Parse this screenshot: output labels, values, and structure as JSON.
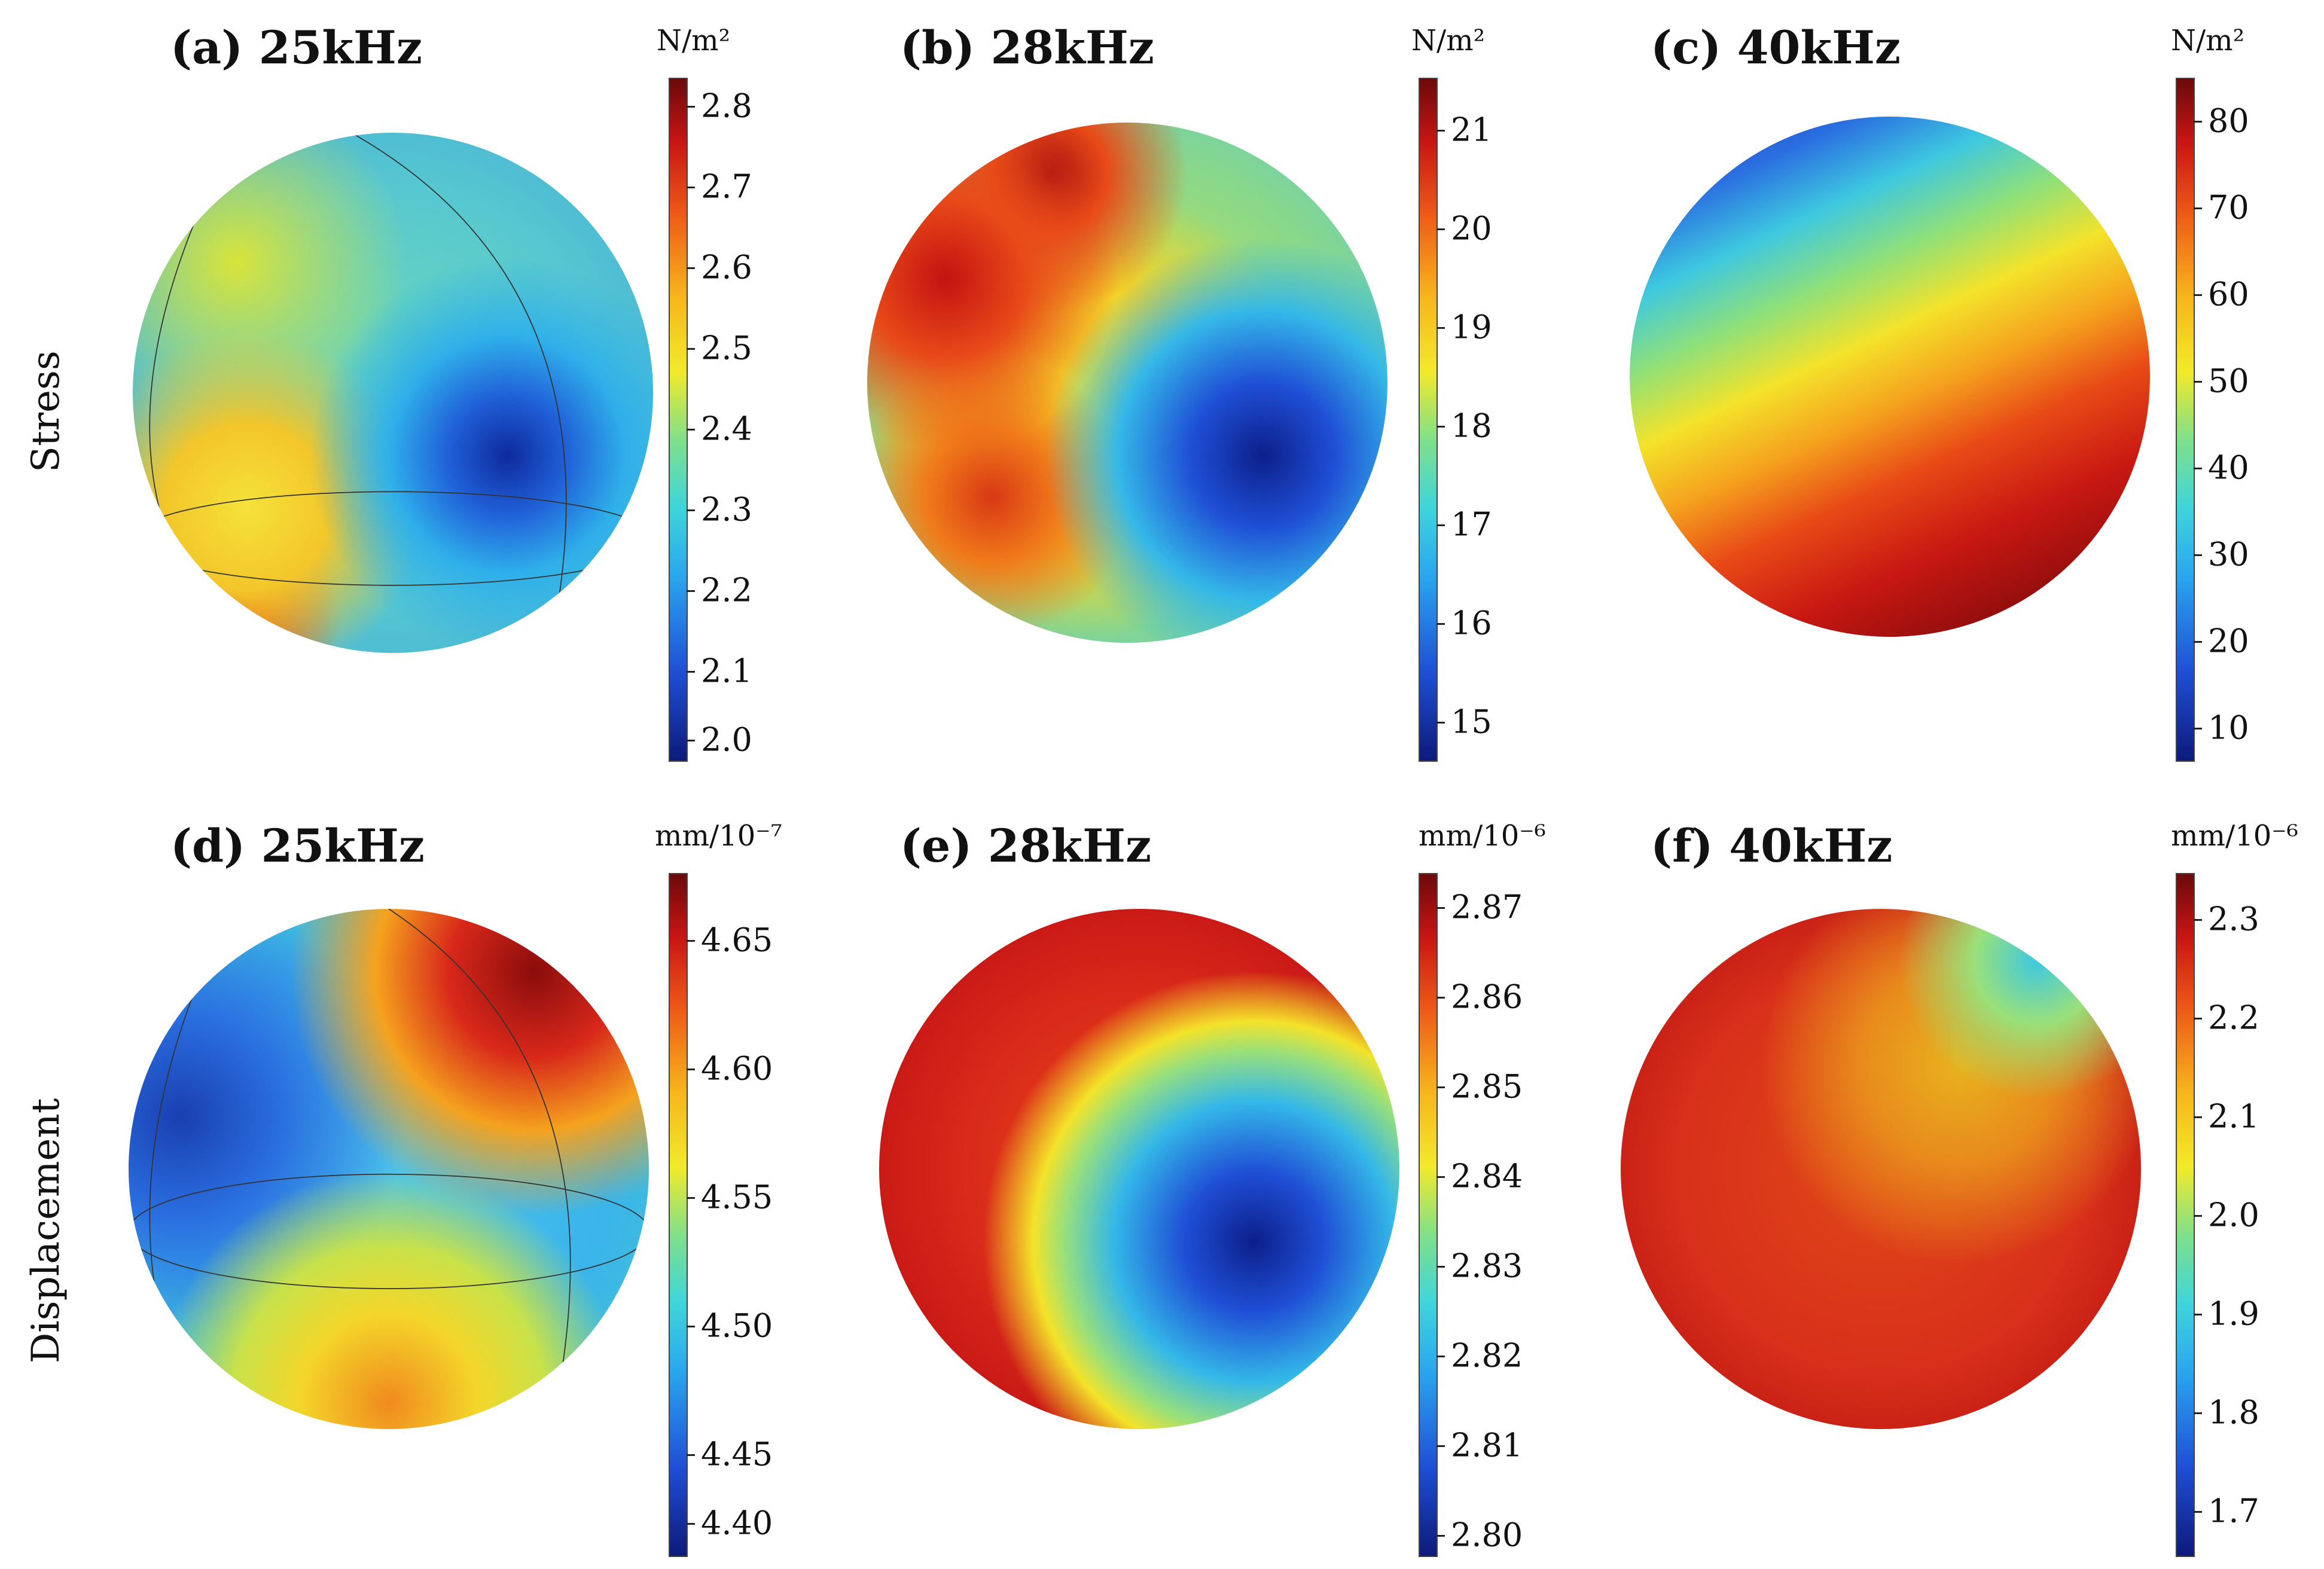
{
  "rows": [
    {
      "label": "Stress"
    },
    {
      "label": "Displacement"
    }
  ],
  "panels": [
    {
      "title": "(a) 25kHz",
      "unit": "N/m²",
      "ticks": [
        "2.8",
        "2.7",
        "2.6",
        "2.5",
        "2.4",
        "2.3",
        "2.2",
        "2.1",
        "2.0"
      ]
    },
    {
      "title": "(b) 28kHz",
      "unit": "N/m²",
      "ticks": [
        "21",
        "20",
        "19",
        "18",
        "17",
        "16",
        "15"
      ]
    },
    {
      "title": "(c) 40kHz",
      "unit": "N/m²",
      "ticks": [
        "80",
        "70",
        "60",
        "50",
        "40",
        "30",
        "20",
        "10"
      ]
    },
    {
      "title": "(d) 25kHz",
      "unit": "mm/10⁻⁷",
      "ticks": [
        "4.65",
        "4.60",
        "4.55",
        "4.50",
        "4.45",
        "4.40"
      ]
    },
    {
      "title": "(e) 28kHz",
      "unit": "mm/10⁻⁶",
      "ticks": [
        "2.87",
        "2.86",
        "2.85",
        "2.84",
        "2.83",
        "2.82",
        "2.81",
        "2.80"
      ]
    },
    {
      "title": "(f) 40kHz",
      "unit": "mm/10⁻⁶",
      "ticks": [
        "2.3",
        "2.2",
        "2.1",
        "2.0",
        "1.9",
        "1.8",
        "1.7"
      ]
    }
  ],
  "colors": {
    "colormap_low": "#0d1a7a",
    "colormap_mid": "#f2ea2a",
    "colormap_high": "#6b0a0a"
  }
}
